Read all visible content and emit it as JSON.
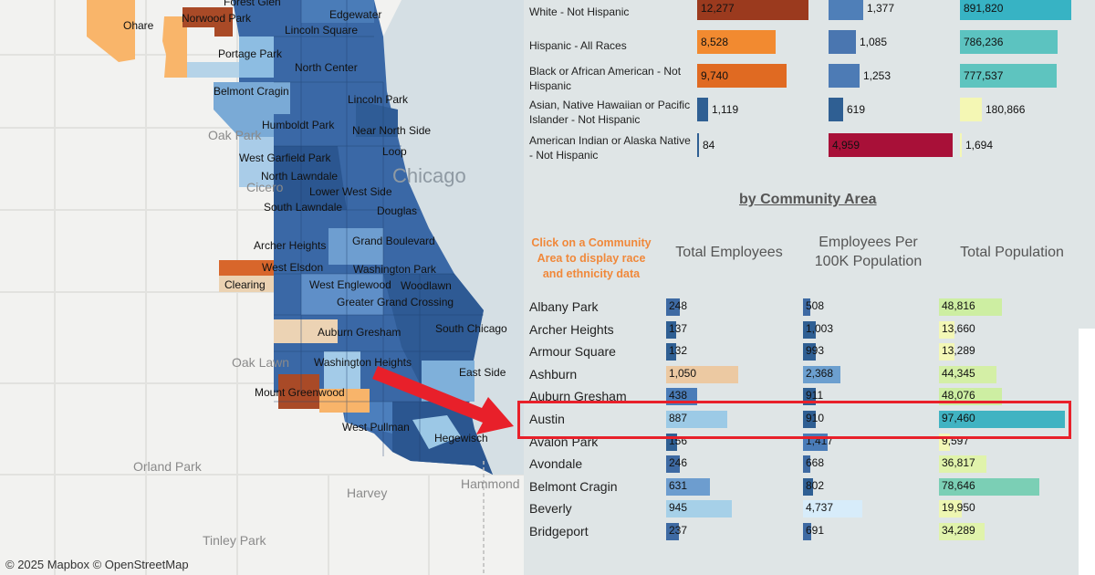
{
  "map": {
    "attribution": "© 2025 Mapbox  © OpenStreetMap",
    "city_label": "Chicago",
    "community_labels": [
      "Forest Glen",
      "Norwood Park",
      "Edgewater",
      "Ohare",
      "Lincoln Square",
      "Portage Park",
      "North Center",
      "Belmont Cragin",
      "Lincoln Park",
      "Humboldt Park",
      "Near North Side",
      "Loop",
      "West Garfield Park",
      "North Lawndale",
      "Lower West Side",
      "South Lawndale",
      "Douglas",
      "Archer Heights",
      "Grand Boulevard",
      "West Elsdon",
      "Washington Park",
      "Clearing",
      "West Englewood",
      "Woodlawn",
      "Greater Grand Crossing",
      "Auburn Gresham",
      "South Chicago",
      "Washington Heights",
      "East Side",
      "Mount Greenwood",
      "Hegewisch",
      "West Pullman"
    ],
    "background_labels": [
      "Oak Park",
      "Cicero",
      "Oak Lawn",
      "Orland Park",
      "Harvey",
      "Tinley Park",
      "Hammond"
    ]
  },
  "race_table": {
    "rows": [
      {
        "label": "White - Not Hispanic",
        "employees": "12,277",
        "per100k": "1,377",
        "population": "891,820",
        "emp_frac": 0.9,
        "per_frac": 0.28,
        "pop_frac": 1.0,
        "emp_color": "#9b3a1e",
        "per_color": "#4f7fb8",
        "pop_color": "#37b3c4"
      },
      {
        "label": "Hispanic - All Races",
        "employees": "8,528",
        "per100k": "1,085",
        "population": "786,236",
        "emp_frac": 0.63,
        "per_frac": 0.22,
        "pop_frac": 0.88,
        "emp_color": "#f28a30",
        "per_color": "#4a76b0",
        "pop_color": "#5cc3c0"
      },
      {
        "label": "Black or African American - Not Hispanic",
        "employees": "9,740",
        "per100k": "1,253",
        "population": "777,537",
        "emp_frac": 0.72,
        "per_frac": 0.25,
        "pop_frac": 0.87,
        "emp_color": "#e06a22",
        "per_color": "#4d7bb5",
        "pop_color": "#5ec4bf"
      },
      {
        "label": "Asian, Native Hawaiian or Pacific Islander - Not Hispanic",
        "employees": "1,119",
        "per100k": "619",
        "population": "180,866",
        "emp_frac": 0.09,
        "per_frac": 0.12,
        "pop_frac": 0.2,
        "emp_color": "#2f5f93",
        "per_color": "#2f5f93",
        "pop_color": "#f4f7b4"
      },
      {
        "label": "American Indian or Alaska Native - Not Hispanic",
        "employees": "84",
        "per100k": "4,959",
        "population": "1,694",
        "emp_frac": 0.01,
        "per_frac": 1.0,
        "pop_frac": 0.01,
        "emp_color": "#2f5f93",
        "per_color": "#a81038",
        "pop_color": "#f4f7b4"
      }
    ]
  },
  "section_title": "by Community Area",
  "hint": "Click on a Community Area to display race and ethnicity data",
  "columns": {
    "employees": "Total Employees",
    "per100k": "Employees Per 100K Population",
    "population": "Total Population"
  },
  "areas": [
    {
      "name": "Albany Park",
      "employees": "248",
      "per100k": "508",
      "population": "48,816",
      "emp_frac": 0.13,
      "per_frac": 0.06,
      "pop_frac": 0.5,
      "emp_color": "#3e6aa3",
      "per_color": "#3e6aa3",
      "pop_color": "#cdeea2"
    },
    {
      "name": "Archer Heights",
      "employees": "137",
      "per100k": "1,003",
      "population": "13,660",
      "emp_frac": 0.09,
      "per_frac": 0.1,
      "pop_frac": 0.12,
      "emp_color": "#2f5f93",
      "per_color": "#2f5f93",
      "pop_color": "#f3f7b6"
    },
    {
      "name": "Armour Square",
      "employees": "132",
      "per100k": "993",
      "population": "13,289",
      "emp_frac": 0.09,
      "per_frac": 0.1,
      "pop_frac": 0.12,
      "emp_color": "#2f5f93",
      "per_color": "#2f5f93",
      "pop_color": "#f3f7b6"
    },
    {
      "name": "Ashburn",
      "employees": "1,050",
      "per100k": "2,368",
      "population": "44,345",
      "emp_frac": 0.67,
      "per_frac": 0.3,
      "pop_frac": 0.46,
      "emp_color": "#ecc9a2",
      "per_color": "#6c9fcf",
      "pop_color": "#d4efa6"
    },
    {
      "name": "Auburn Gresham",
      "employees": "438",
      "per100k": "911",
      "population": "48,076",
      "emp_frac": 0.29,
      "per_frac": 0.1,
      "pop_frac": 0.5,
      "emp_color": "#4a7cb8",
      "per_color": "#2f5f93",
      "pop_color": "#cdeea2"
    },
    {
      "name": "Austin",
      "employees": "887",
      "per100k": "910",
      "population": "97,460",
      "emp_frac": 0.57,
      "per_frac": 0.1,
      "pop_frac": 1.0,
      "emp_color": "#9ccae6",
      "per_color": "#2f5f93",
      "pop_color": "#40b3c2"
    },
    {
      "name": "Avalon Park",
      "employees": "156",
      "per100k": "1,417",
      "population": "9,597",
      "emp_frac": 0.1,
      "per_frac": 0.2,
      "pop_frac": 0.09,
      "emp_color": "#2f5f93",
      "per_color": "#4a7cb8",
      "pop_color": "#f3f7b6"
    },
    {
      "name": "Avondale",
      "employees": "246",
      "per100k": "668",
      "population": "36,817",
      "emp_frac": 0.13,
      "per_frac": 0.06,
      "pop_frac": 0.38,
      "emp_color": "#3e6aa3",
      "per_color": "#3e6aa3",
      "pop_color": "#e0f3ab"
    },
    {
      "name": "Belmont Cragin",
      "employees": "631",
      "per100k": "802",
      "population": "78,646",
      "emp_frac": 0.41,
      "per_frac": 0.08,
      "pop_frac": 0.8,
      "emp_color": "#6d9dcf",
      "per_color": "#2f5f93",
      "pop_color": "#7bcfb5"
    },
    {
      "name": "Beverly",
      "employees": "945",
      "per100k": "4,737",
      "population": "19,950",
      "emp_frac": 0.61,
      "per_frac": 0.48,
      "pop_frac": 0.18,
      "emp_color": "#a6d0e8",
      "per_color": "#d7ecfa",
      "pop_color": "#eef6b2"
    },
    {
      "name": "Bridgeport",
      "employees": "237",
      "per100k": "691",
      "population": "34,289",
      "emp_frac": 0.12,
      "per_frac": 0.07,
      "pop_frac": 0.36,
      "emp_color": "#3e6aa3",
      "per_color": "#3e6aa3",
      "pop_color": "#e0f3ab"
    }
  ]
}
